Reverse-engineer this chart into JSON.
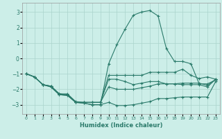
{
  "title": "",
  "xlabel": "Humidex (Indice chaleur)",
  "ylabel": "",
  "xlim": [
    -0.5,
    23.5
  ],
  "ylim": [
    -3.6,
    3.6
  ],
  "yticks": [
    -3,
    -2,
    -1,
    0,
    1,
    2,
    3
  ],
  "xticks": [
    0,
    1,
    2,
    3,
    4,
    5,
    6,
    7,
    8,
    9,
    10,
    11,
    12,
    13,
    14,
    15,
    16,
    17,
    18,
    19,
    20,
    21,
    22,
    23
  ],
  "bg_color": "#cceee8",
  "grid_color": "#aad4cc",
  "line_color": "#2a7a6a",
  "curves": [
    {
      "x": [
        0,
        1,
        2,
        3,
        4,
        5,
        6,
        7,
        8,
        9,
        10,
        11,
        12,
        13,
        14,
        15,
        16,
        17,
        18,
        19,
        20,
        21,
        22,
        23
      ],
      "y": [
        -1.0,
        -1.2,
        -1.7,
        -1.8,
        -2.3,
        -2.3,
        -2.8,
        -2.85,
        -2.85,
        -2.85,
        -1.1,
        -1.1,
        -1.1,
        -1.1,
        -1.1,
        -0.9,
        -0.9,
        -0.9,
        -0.9,
        -0.7,
        -1.1,
        -1.3,
        -1.2,
        -1.35
      ]
    },
    {
      "x": [
        0,
        1,
        2,
        3,
        4,
        5,
        6,
        7,
        8,
        9,
        10,
        11,
        12,
        13,
        14,
        15,
        16,
        17,
        18,
        19,
        20,
        21,
        22,
        23
      ],
      "y": [
        -1.0,
        -1.2,
        -1.7,
        -1.8,
        -2.3,
        -2.35,
        -2.85,
        -2.85,
        -2.85,
        -2.85,
        -1.35,
        -1.35,
        -1.5,
        -1.7,
        -1.6,
        -1.5,
        -1.5,
        -1.65,
        -1.65,
        -1.7,
        -1.7,
        -1.7,
        -1.85,
        -1.35
      ]
    },
    {
      "x": [
        0,
        1,
        2,
        3,
        4,
        5,
        6,
        7,
        8,
        9,
        10,
        11,
        12,
        13,
        14,
        15,
        16,
        17,
        18,
        19,
        20,
        21,
        22,
        23
      ],
      "y": [
        -1.0,
        -1.2,
        -1.7,
        -1.8,
        -2.3,
        -2.35,
        -2.85,
        -2.85,
        -2.85,
        -2.85,
        -1.85,
        -2.0,
        -2.0,
        -2.0,
        -1.9,
        -1.8,
        -1.65,
        -1.65,
        -1.65,
        -1.6,
        -1.6,
        -1.6,
        -1.75,
        -1.35
      ]
    },
    {
      "x": [
        0,
        1,
        2,
        3,
        4,
        5,
        6,
        7,
        8,
        9,
        10,
        11,
        12,
        13,
        14,
        15,
        16,
        17,
        18,
        19,
        20,
        21,
        22,
        23
      ],
      "y": [
        -1.0,
        -1.2,
        -1.7,
        -1.85,
        -2.35,
        -2.4,
        -2.85,
        -2.9,
        -3.0,
        -3.0,
        -2.85,
        -3.05,
        -3.05,
        -3.0,
        -2.9,
        -2.8,
        -2.6,
        -2.6,
        -2.55,
        -2.5,
        -2.5,
        -2.5,
        -2.5,
        -1.5
      ]
    },
    {
      "x": [
        0,
        1,
        2,
        3,
        4,
        5,
        6,
        7,
        8,
        9,
        10,
        11,
        12,
        13,
        14,
        15,
        16,
        17,
        18,
        19,
        20,
        21,
        22,
        23
      ],
      "y": [
        -1.0,
        -1.2,
        -1.7,
        -1.85,
        -2.35,
        -2.4,
        -2.85,
        -2.9,
        -3.0,
        -3.0,
        -0.35,
        0.9,
        1.9,
        2.8,
        3.0,
        3.1,
        2.75,
        0.65,
        -0.2,
        -0.2,
        -0.35,
        -1.65,
        -1.65,
        -1.4
      ]
    }
  ]
}
